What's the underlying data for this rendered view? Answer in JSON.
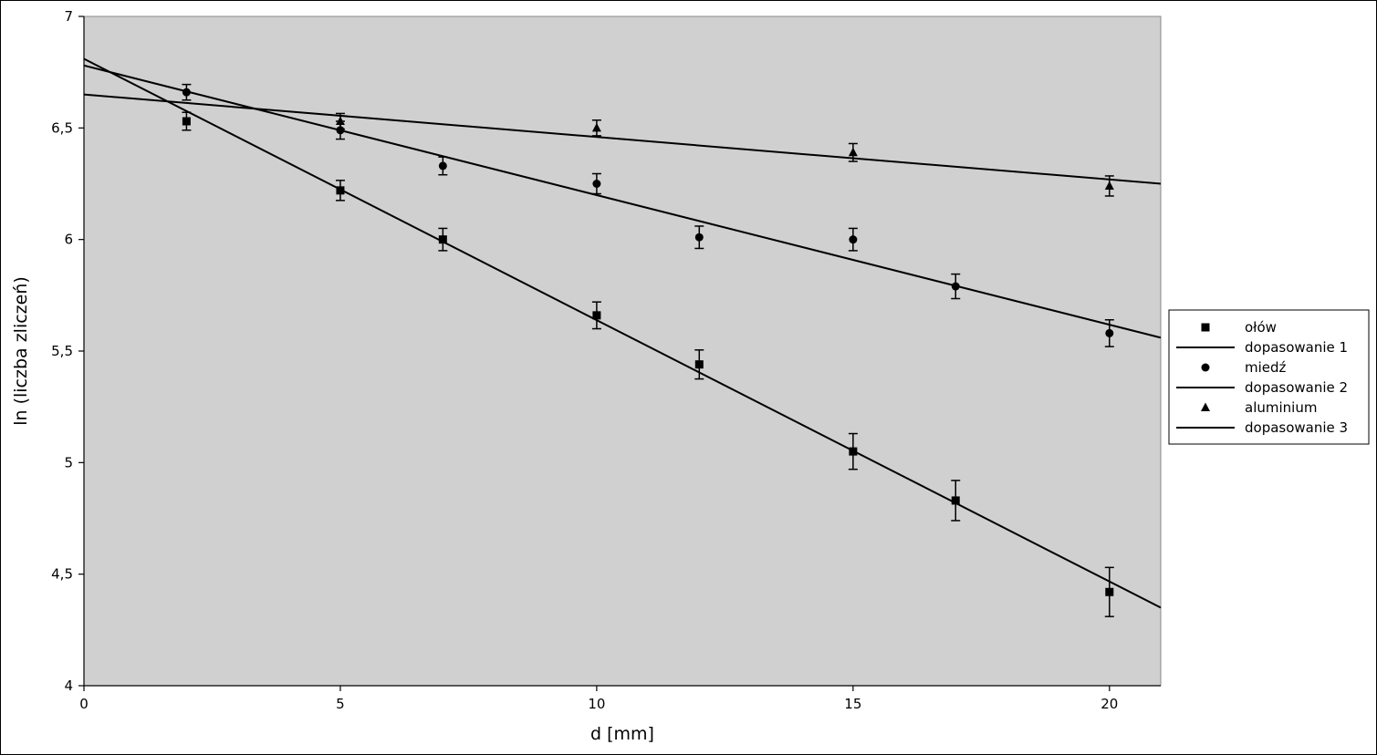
{
  "chart_data": {
    "type": "scatter",
    "title": "",
    "xlabel": "d [mm]",
    "ylabel": "ln (liczba zliczeń)",
    "xlim": [
      0,
      21
    ],
    "ylim": [
      4,
      7
    ],
    "x_ticks": [
      0,
      5,
      10,
      15,
      20
    ],
    "y_ticks": [
      4,
      4.5,
      5,
      5.5,
      6,
      6.5,
      7
    ],
    "x_tick_labels": [
      "0",
      "5",
      "10",
      "15",
      "20"
    ],
    "y_tick_labels": [
      "4",
      "4,5",
      "5",
      "5,5",
      "6",
      "6,5",
      "7"
    ],
    "grid": false,
    "plot_background": "#d0d0d0",
    "legend_position": "right",
    "series": [
      {
        "name": "ołów",
        "marker": "square",
        "x": [
          2,
          5,
          7,
          10,
          12,
          15,
          17,
          20
        ],
        "y": [
          6.53,
          6.22,
          6.0,
          5.66,
          5.44,
          5.05,
          4.83,
          4.42
        ],
        "yerr": [
          0.04,
          0.045,
          0.05,
          0.06,
          0.065,
          0.08,
          0.09,
          0.11
        ]
      },
      {
        "name": "miedź",
        "marker": "circle",
        "x": [
          2,
          5,
          7,
          10,
          12,
          15,
          17,
          20
        ],
        "y": [
          6.66,
          6.49,
          6.33,
          6.25,
          6.01,
          6.0,
          5.79,
          5.58
        ],
        "yerr": [
          0.035,
          0.04,
          0.04,
          0.045,
          0.05,
          0.05,
          0.055,
          0.06
        ]
      },
      {
        "name": "aluminium",
        "marker": "triangle",
        "x": [
          5,
          10,
          15,
          20
        ],
        "y": [
          6.53,
          6.5,
          6.39,
          6.24
        ],
        "yerr": [
          0.035,
          0.035,
          0.04,
          0.045
        ]
      }
    ],
    "fits": [
      {
        "name": "dopasowanie 1",
        "x": [
          0,
          21
        ],
        "y": [
          6.81,
          4.35
        ]
      },
      {
        "name": "dopasowanie 2",
        "x": [
          0,
          21
        ],
        "y": [
          6.78,
          5.56
        ]
      },
      {
        "name": "dopasowanie 3",
        "x": [
          0,
          21
        ],
        "y": [
          6.65,
          6.25
        ]
      }
    ],
    "legend": [
      {
        "label": "ołów",
        "kind": "marker",
        "marker": "square"
      },
      {
        "label": "dopasowanie 1",
        "kind": "line"
      },
      {
        "label": "miedź",
        "kind": "marker",
        "marker": "circle"
      },
      {
        "label": "dopasowanie 2",
        "kind": "line"
      },
      {
        "label": "aluminium",
        "kind": "marker",
        "marker": "triangle"
      },
      {
        "label": "dopasowanie 3",
        "kind": "line"
      }
    ]
  }
}
